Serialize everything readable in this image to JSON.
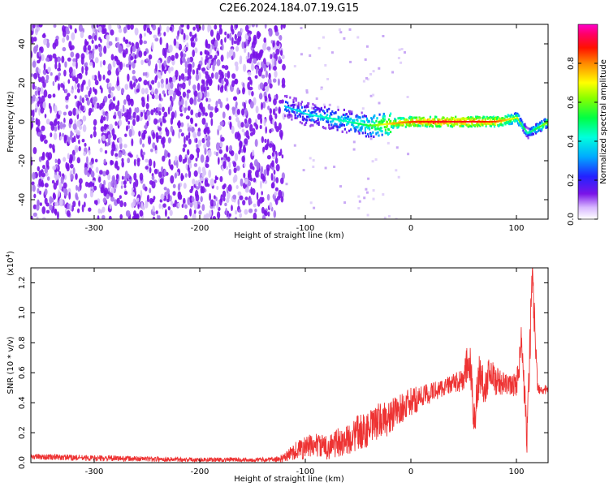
{
  "title": "C2E6.2024.184.07.19.G15",
  "colors": {
    "snr_line": "#ee3333",
    "spectrum_scatter": "#7a14e8",
    "background": "#ffffff",
    "axes": "#000000"
  },
  "chart_data": [
    {
      "type": "heatmap",
      "xlabel": "Height of straight line (km)",
      "ylabel": "Frequency (Hz)",
      "xlim": [
        -360,
        130
      ],
      "ylim": [
        -50,
        50
      ],
      "xticks": [
        -300,
        -200,
        -100,
        0,
        100
      ],
      "yticks": [
        -40,
        -20,
        0,
        20,
        40
      ],
      "colorbar": {
        "label": "Normalized spectral amplitude",
        "range": [
          0,
          1
        ],
        "ticks": [
          0.0,
          0.2,
          0.4,
          0.6,
          0.8
        ],
        "colormap": "rainbow (white-violet-blue-cyan-green-yellow-red-magenta)"
      },
      "features": {
        "noise_region_x": [
          -360,
          -120
        ],
        "signal_trace": {
          "x": [
            -120,
            -100,
            -80,
            -60,
            -40,
            -20,
            0,
            20,
            40,
            60,
            80,
            100,
            110,
            130
          ],
          "frequency": [
            8,
            4,
            2,
            0,
            -2,
            -1,
            0,
            0,
            0,
            0,
            0,
            2,
            -6,
            0
          ],
          "amplitude": [
            0.3,
            0.35,
            0.4,
            0.4,
            0.5,
            0.7,
            0.8,
            0.85,
            0.85,
            0.85,
            0.8,
            0.6,
            0.4,
            0.6
          ]
        }
      },
      "grid": false
    },
    {
      "type": "line",
      "xlabel": "Height of straight line (km)",
      "ylabel": "SNR (10 * v/v)",
      "yscale_label": "(x10",
      "yscale_exp": "4",
      "xlim": [
        -360,
        130
      ],
      "ylim": [
        0,
        1.3
      ],
      "xticks": [
        -300,
        -200,
        -100,
        0,
        100
      ],
      "yticks": [
        0.0,
        0.2,
        0.4,
        0.6,
        0.8,
        1.0,
        1.2
      ],
      "grid": false,
      "series": [
        {
          "x": [
            -360,
            -300,
            -200,
            -130,
            -120,
            -110,
            -100,
            -90,
            -80,
            -70,
            -60,
            -50,
            -40,
            -30,
            -20,
            -10,
            0,
            10,
            20,
            30,
            40,
            50,
            55,
            60,
            65,
            70,
            75,
            80,
            90,
            100,
            105,
            110,
            115,
            120,
            130
          ],
          "y": [
            0.04,
            0.03,
            0.02,
            0.02,
            0.03,
            0.08,
            0.1,
            0.12,
            0.1,
            0.13,
            0.15,
            0.2,
            0.22,
            0.28,
            0.3,
            0.36,
            0.4,
            0.44,
            0.47,
            0.5,
            0.53,
            0.55,
            0.7,
            0.3,
            0.6,
            0.5,
            0.62,
            0.55,
            0.52,
            0.52,
            0.8,
            0.15,
            1.28,
            0.5,
            0.48
          ],
          "noise": [
            0.02,
            0.02,
            0.015,
            0.015,
            0.03,
            0.06,
            0.08,
            0.08,
            0.08,
            0.1,
            0.1,
            0.12,
            0.12,
            0.12,
            0.12,
            0.1,
            0.1,
            0.08,
            0.07,
            0.06,
            0.06,
            0.08,
            0.18,
            0.15,
            0.15,
            0.12,
            0.1,
            0.1,
            0.07,
            0.08,
            0.15,
            0.1,
            0.2,
            0.04,
            0.03
          ]
        }
      ]
    }
  ]
}
